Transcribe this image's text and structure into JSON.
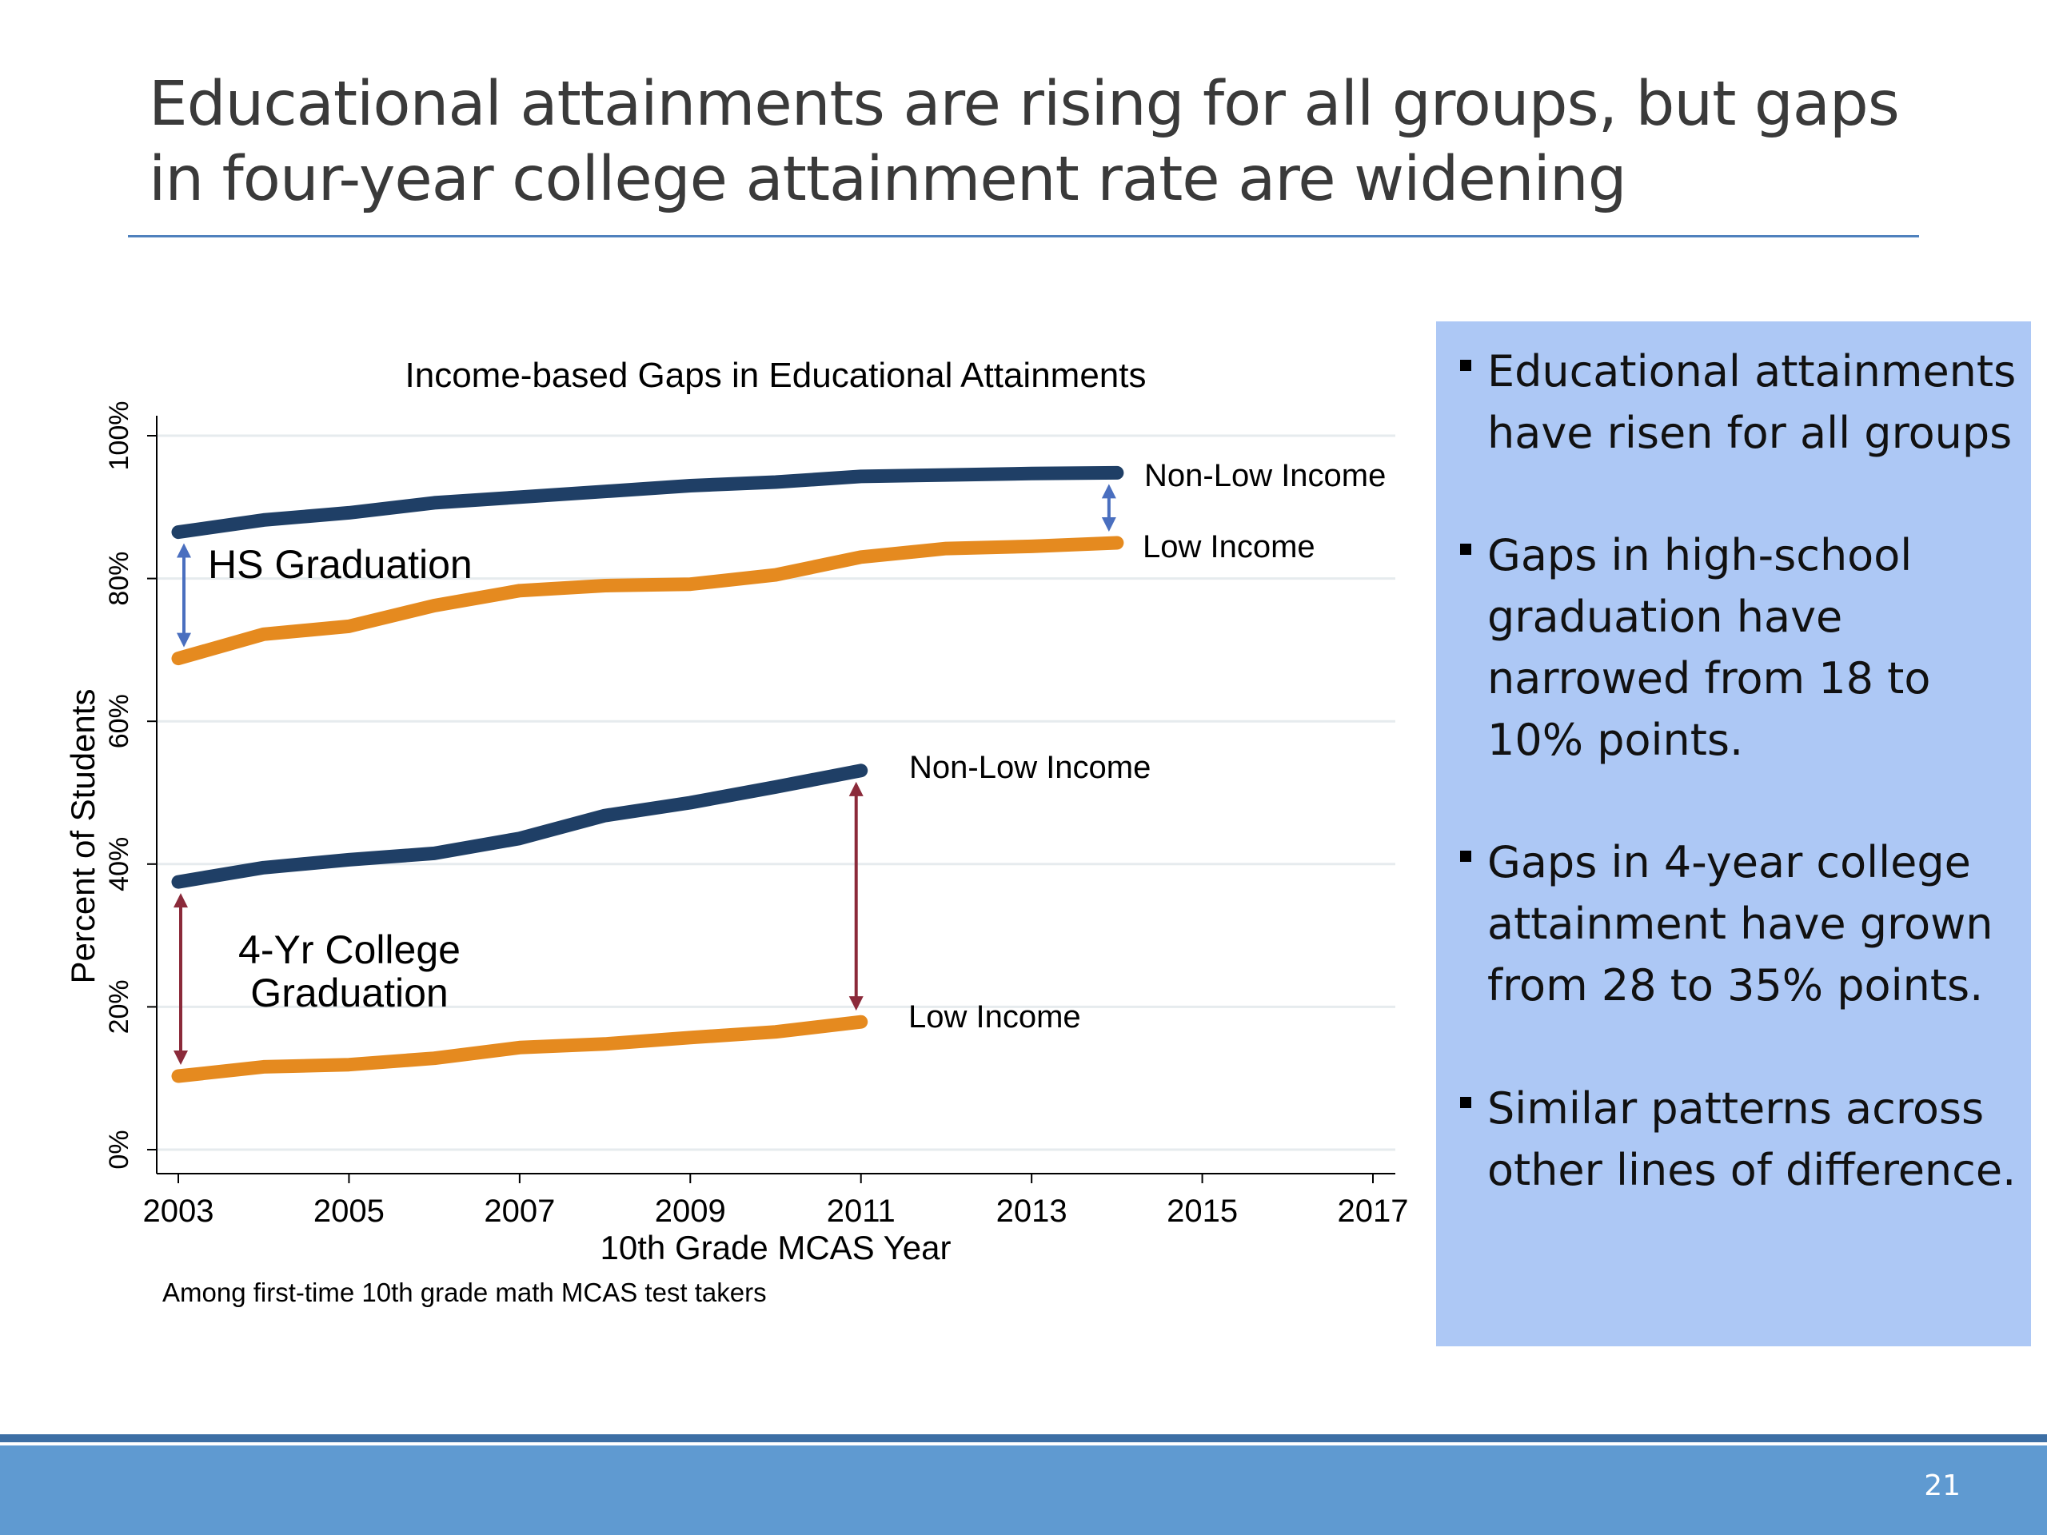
{
  "slide": {
    "title": "Educational attainments are rising for all groups, but gaps in four-year college attainment rate are widening",
    "page_number": "21",
    "accent_color": "#4f81bd",
    "footer_color": "#5f9ad1"
  },
  "sidebar": {
    "background": "#adc8f5",
    "bullets": [
      "Educational attainments have risen for all groups",
      "Gaps in high-school graduation have narrowed from 18 to 10% points.",
      "Gaps in 4-year college attainment have grown from 28 to 35% points.",
      "Similar patterns across other lines of difference."
    ]
  },
  "chart_data": {
    "type": "line",
    "title": "Income-based Gaps in Educational Attainments",
    "xlabel": "10th Grade MCAS Year",
    "ylabel": "Percent of Students",
    "note": "Among first-time 10th grade math MCAS test takers",
    "xlim": [
      2003,
      2017
    ],
    "ylim": [
      0,
      100
    ],
    "x_ticks": [
      "2003",
      "2005",
      "2007",
      "2009",
      "2011",
      "2013",
      "2015",
      "2017"
    ],
    "y_ticks": [
      {
        "value": 0,
        "label": "0%"
      },
      {
        "value": 20,
        "label": "20%"
      },
      {
        "value": 40,
        "label": "40%"
      },
      {
        "value": 60,
        "label": "60%"
      },
      {
        "value": 80,
        "label": "80%"
      },
      {
        "value": 100,
        "label": "100%"
      }
    ],
    "grid": true,
    "groups": [
      {
        "label": "HS Graduation",
        "gap_arrow_color": "#4a6fbf",
        "series": [
          {
            "name": "Non-Low Income",
            "color": "#1f3f66",
            "x": [
              2003,
              2004,
              2005,
              2006,
              2007,
              2008,
              2009,
              2010,
              2011,
              2012,
              2013,
              2014
            ],
            "y": [
              86.5,
              88.2,
              89.2,
              90.6,
              91.4,
              92.2,
              93.0,
              93.5,
              94.3,
              94.5,
              94.7,
              94.8
            ]
          },
          {
            "name": "Low Income",
            "color": "#e58a1f",
            "x": [
              2003,
              2004,
              2005,
              2006,
              2007,
              2008,
              2009,
              2010,
              2011,
              2012,
              2013,
              2014
            ],
            "y": [
              68.8,
              72.2,
              73.3,
              76.2,
              78.3,
              79.0,
              79.2,
              80.5,
              83.0,
              84.2,
              84.5,
              85.0
            ]
          }
        ]
      },
      {
        "label": "4-Yr College Graduation",
        "gap_arrow_color": "#8b2a3a",
        "series": [
          {
            "name": "Non-Low Income",
            "color": "#1f3f66",
            "x": [
              2003,
              2004,
              2005,
              2006,
              2007,
              2008,
              2009,
              2010,
              2011
            ],
            "y": [
              37.5,
              39.5,
              40.6,
              41.5,
              43.6,
              46.8,
              48.6,
              50.8,
              53.1
            ]
          },
          {
            "name": "Low Income",
            "color": "#e58a1f",
            "x": [
              2003,
              2004,
              2005,
              2006,
              2007,
              2008,
              2009,
              2010,
              2011
            ],
            "y": [
              10.3,
              11.6,
              11.9,
              12.8,
              14.3,
              14.8,
              15.7,
              16.5,
              17.9
            ]
          }
        ]
      }
    ]
  }
}
